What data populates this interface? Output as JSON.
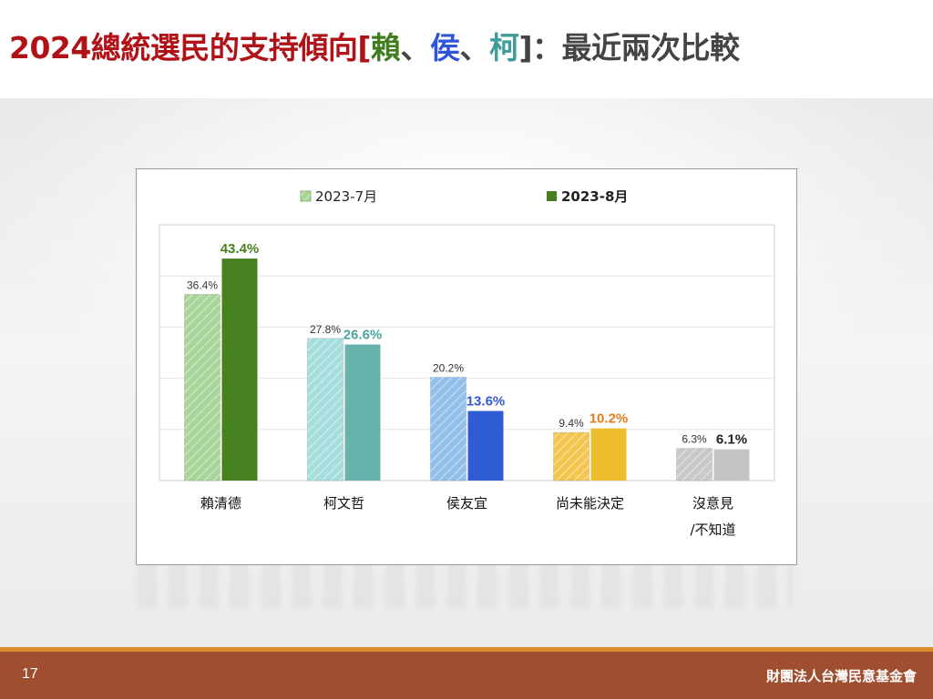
{
  "slide": {
    "title_main": "2024總統選民的支持傾向[",
    "title_lai": "賴",
    "title_sep1": "、",
    "title_hou": "侯",
    "title_sep2": "、",
    "title_ko": "柯",
    "title_rest": "]：最近兩次比較",
    "page_number": "17",
    "organization": "財團法人台灣民意基金會"
  },
  "colors": {
    "title_red": "#b01217",
    "lai_green": "#3f7d1f",
    "hou_blue": "#2f54d6",
    "ko_teal": "#3f9c9a"
  },
  "chart_data": {
    "type": "bar",
    "ylim": [
      0,
      50
    ],
    "grid": true,
    "legend_position": "top",
    "categories": [
      "賴清德",
      "柯文哲",
      "侯友宜",
      "尚未能決定",
      "沒意見/不知道"
    ],
    "category_lines": [
      [
        "賴清德"
      ],
      [
        "柯文哲"
      ],
      [
        "侯友宜"
      ],
      [
        "尚未能決定"
      ],
      [
        "沒意見",
        "/不知道"
      ]
    ],
    "series": [
      {
        "name": "2023-7月",
        "values": [
          36.4,
          27.8,
          20.2,
          9.4,
          6.3
        ],
        "labels": [
          "36.4%",
          "27.8%",
          "20.2%",
          "9.4%",
          "6.3%"
        ],
        "colors": [
          "#a9d49a",
          "#a6dede",
          "#93c0ea",
          "#f3c64f",
          "#c9c9c9"
        ],
        "hatched": true
      },
      {
        "name": "2023-8月",
        "values": [
          43.4,
          26.6,
          13.6,
          10.2,
          6.1
        ],
        "labels": [
          "43.4%",
          "26.6%",
          "13.6%",
          "10.2%",
          "6.1%"
        ],
        "colors": [
          "#46801f",
          "#69b3ae",
          "#2f5bd3",
          "#eebd2e",
          "#c3c3c3"
        ],
        "label_colors": [
          "#46801f",
          "#4aa39d",
          "#3557d6",
          "#e07b1c",
          "#222222"
        ],
        "hatched": false
      }
    ]
  }
}
